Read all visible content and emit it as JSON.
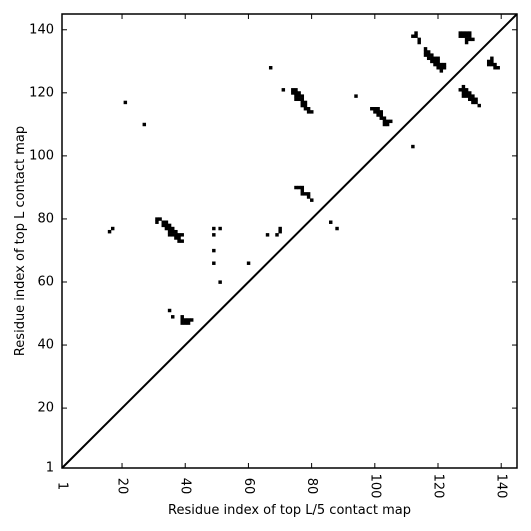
{
  "chart_data": {
    "type": "scatter",
    "title": "",
    "xlabel": "Residue index of top L/5 contact map",
    "ylabel": "Residue index of top L contact map",
    "xlim": [
      1,
      145
    ],
    "ylim": [
      1,
      145
    ],
    "xticks": [
      1,
      20,
      40,
      60,
      80,
      100,
      120,
      140
    ],
    "yticks": [
      1,
      20,
      40,
      60,
      80,
      100,
      120,
      140
    ],
    "grid": false,
    "marker": "square",
    "color": "#000000",
    "diagonal": true,
    "points": [
      [
        21,
        117
      ],
      [
        27,
        110
      ],
      [
        16,
        76
      ],
      [
        17,
        77
      ],
      [
        31,
        79
      ],
      [
        31,
        80
      ],
      [
        32,
        80
      ],
      [
        33,
        78
      ],
      [
        33,
        79
      ],
      [
        34,
        77
      ],
      [
        34,
        78
      ],
      [
        34,
        79
      ],
      [
        35,
        75
      ],
      [
        35,
        76
      ],
      [
        35,
        77
      ],
      [
        35,
        78
      ],
      [
        36,
        75
      ],
      [
        36,
        76
      ],
      [
        36,
        77
      ],
      [
        37,
        74
      ],
      [
        37,
        75
      ],
      [
        37,
        76
      ],
      [
        38,
        73
      ],
      [
        38,
        74
      ],
      [
        38,
        75
      ],
      [
        39,
        73
      ],
      [
        39,
        75
      ],
      [
        35,
        51
      ],
      [
        36,
        49
      ],
      [
        39,
        47
      ],
      [
        39,
        48
      ],
      [
        39,
        49
      ],
      [
        40,
        47
      ],
      [
        40,
        48
      ],
      [
        41,
        47
      ],
      [
        41,
        48
      ],
      [
        42,
        48
      ],
      [
        49,
        77
      ],
      [
        49,
        75
      ],
      [
        49,
        70
      ],
      [
        49,
        66
      ],
      [
        51,
        77
      ],
      [
        51,
        60
      ],
      [
        60,
        66
      ],
      [
        66,
        75
      ],
      [
        67,
        128
      ],
      [
        69,
        75
      ],
      [
        70,
        76
      ],
      [
        70,
        77
      ],
      [
        71,
        121
      ],
      [
        74,
        120
      ],
      [
        74,
        121
      ],
      [
        75,
        118
      ],
      [
        75,
        119
      ],
      [
        75,
        120
      ],
      [
        75,
        121
      ],
      [
        76,
        118
      ],
      [
        76,
        119
      ],
      [
        76,
        120
      ],
      [
        77,
        116
      ],
      [
        77,
        117
      ],
      [
        77,
        118
      ],
      [
        77,
        119
      ],
      [
        78,
        115
      ],
      [
        78,
        116
      ],
      [
        78,
        117
      ],
      [
        79,
        114
      ],
      [
        79,
        115
      ],
      [
        80,
        114
      ],
      [
        75,
        90
      ],
      [
        76,
        90
      ],
      [
        77,
        88
      ],
      [
        77,
        89
      ],
      [
        77,
        90
      ],
      [
        78,
        88
      ],
      [
        79,
        88
      ],
      [
        79,
        87
      ],
      [
        80,
        86
      ],
      [
        86,
        79
      ],
      [
        88,
        77
      ],
      [
        94,
        119
      ],
      [
        99,
        115
      ],
      [
        100,
        115
      ],
      [
        100,
        114
      ],
      [
        101,
        113
      ],
      [
        101,
        114
      ],
      [
        101,
        115
      ],
      [
        102,
        112
      ],
      [
        102,
        113
      ],
      [
        102,
        114
      ],
      [
        103,
        111
      ],
      [
        103,
        112
      ],
      [
        103,
        110
      ],
      [
        104,
        110
      ],
      [
        104,
        111
      ],
      [
        105,
        111
      ],
      [
        112,
        103
      ],
      [
        112,
        138
      ],
      [
        113,
        138
      ],
      [
        113,
        139
      ],
      [
        114,
        136
      ],
      [
        114,
        137
      ],
      [
        116,
        132
      ],
      [
        116,
        133
      ],
      [
        116,
        134
      ],
      [
        117,
        131
      ],
      [
        117,
        132
      ],
      [
        117,
        133
      ],
      [
        118,
        130
      ],
      [
        118,
        131
      ],
      [
        118,
        132
      ],
      [
        119,
        129
      ],
      [
        119,
        130
      ],
      [
        119,
        131
      ],
      [
        120,
        128
      ],
      [
        120,
        129
      ],
      [
        120,
        130
      ],
      [
        120,
        131
      ],
      [
        121,
        127
      ],
      [
        121,
        128
      ],
      [
        121,
        129
      ],
      [
        122,
        128
      ],
      [
        122,
        129
      ],
      [
        127,
        121
      ],
      [
        127,
        138
      ],
      [
        127,
        139
      ],
      [
        128,
        119
      ],
      [
        128,
        120
      ],
      [
        128,
        121
      ],
      [
        128,
        122
      ],
      [
        128,
        138
      ],
      [
        128,
        139
      ],
      [
        129,
        119
      ],
      [
        129,
        120
      ],
      [
        129,
        121
      ],
      [
        129,
        136
      ],
      [
        129,
        137
      ],
      [
        129,
        138
      ],
      [
        129,
        139
      ],
      [
        130,
        118
      ],
      [
        130,
        119
      ],
      [
        130,
        120
      ],
      [
        130,
        137
      ],
      [
        130,
        138
      ],
      [
        130,
        139
      ],
      [
        131,
        117
      ],
      [
        131,
        118
      ],
      [
        131,
        119
      ],
      [
        131,
        137
      ],
      [
        132,
        117
      ],
      [
        132,
        118
      ],
      [
        133,
        116
      ],
      [
        136,
        129
      ],
      [
        136,
        130
      ],
      [
        137,
        129
      ],
      [
        137,
        130
      ],
      [
        137,
        131
      ],
      [
        138,
        128
      ],
      [
        138,
        129
      ],
      [
        139,
        128
      ]
    ]
  }
}
